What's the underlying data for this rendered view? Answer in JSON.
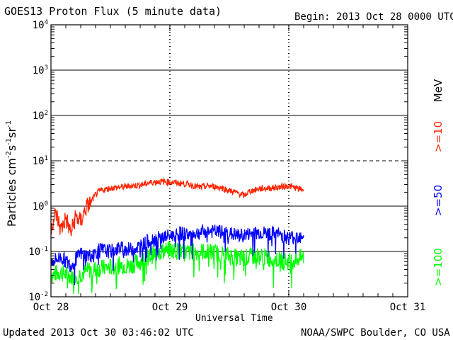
{
  "header": {
    "title": "GOES13 Proton Flux (5 minute data)",
    "begin": "Begin: 2013 Oct 28 0000 UTC"
  },
  "footer": {
    "updated": "Updated 2013 Oct 30 03:46:02 UTC",
    "credit": "NOAA/SWPC Boulder, CO USA"
  },
  "chart_data": {
    "type": "line",
    "title": "GOES13 Proton Flux (5 minute data)",
    "xlabel": "Universal Time",
    "ylabel": "Particles cm-2s-1sr-1",
    "yscale": "log",
    "ylim": [
      0.01,
      10000
    ],
    "xlim_hours": [
      0,
      72
    ],
    "x_ticks": [
      {
        "label": "Oct 28",
        "hour": 0
      },
      {
        "label": "Oct 29",
        "hour": 24
      },
      {
        "label": "Oct 30",
        "hour": 48
      },
      {
        "label": "Oct 31",
        "hour": 72
      }
    ],
    "y_ticks": [
      {
        "mantissa": "10",
        "exp": "-2",
        "value": 0.01
      },
      {
        "mantissa": "10",
        "exp": "-1",
        "value": 0.1
      },
      {
        "mantissa": "10",
        "exp": "0",
        "value": 1
      },
      {
        "mantissa": "10",
        "exp": "1",
        "value": 10
      },
      {
        "mantissa": "10",
        "exp": "2",
        "value": 100
      },
      {
        "mantissa": "10",
        "exp": "3",
        "value": 1000
      },
      {
        "mantissa": "10",
        "exp": "4",
        "value": 10000
      }
    ],
    "thresholds": [
      {
        "value": 0.1,
        "style": "solid"
      },
      {
        "value": 1,
        "style": "solid"
      },
      {
        "value": 10,
        "style": "dashed"
      },
      {
        "value": 100,
        "style": "solid"
      },
      {
        "value": 1000,
        "style": "solid"
      }
    ],
    "energy_unit": "MeV",
    "grid": false,
    "series": [
      {
        "name": ">=10",
        "color": "#ff2400",
        "points": [
          [
            0,
            0.35
          ],
          [
            1,
            0.7
          ],
          [
            2,
            0.3
          ],
          [
            3,
            0.55
          ],
          [
            4,
            0.25
          ],
          [
            5,
            0.6
          ],
          [
            6,
            0.45
          ],
          [
            7,
            0.9
          ],
          [
            8,
            1.2
          ],
          [
            9,
            1.8
          ],
          [
            10,
            2.2
          ],
          [
            12,
            2.5
          ],
          [
            14,
            2.6
          ],
          [
            16,
            2.8
          ],
          [
            18,
            2.9
          ],
          [
            20,
            3.3
          ],
          [
            22,
            3.5
          ],
          [
            24,
            3.4
          ],
          [
            26,
            3.2
          ],
          [
            28,
            3.0
          ],
          [
            30,
            2.6
          ],
          [
            32,
            2.8
          ],
          [
            34,
            2.6
          ],
          [
            36,
            2.2
          ],
          [
            38,
            1.9
          ],
          [
            39,
            1.7
          ],
          [
            40,
            2.1
          ],
          [
            42,
            2.4
          ],
          [
            44,
            2.5
          ],
          [
            46,
            2.6
          ],
          [
            48,
            2.8
          ],
          [
            50,
            2.4
          ],
          [
            51,
            2.3
          ]
        ]
      },
      {
        "name": ">=50",
        "color": "#0000ff",
        "points": [
          [
            0,
            0.06
          ],
          [
            2,
            0.075
          ],
          [
            4,
            0.05
          ],
          [
            6,
            0.09
          ],
          [
            8,
            0.08
          ],
          [
            10,
            0.11
          ],
          [
            12,
            0.1
          ],
          [
            14,
            0.12
          ],
          [
            16,
            0.11
          ],
          [
            18,
            0.13
          ],
          [
            20,
            0.18
          ],
          [
            22,
            0.2
          ],
          [
            24,
            0.22
          ],
          [
            26,
            0.25
          ],
          [
            28,
            0.24
          ],
          [
            30,
            0.26
          ],
          [
            32,
            0.28
          ],
          [
            34,
            0.27
          ],
          [
            36,
            0.25
          ],
          [
            38,
            0.22
          ],
          [
            40,
            0.24
          ],
          [
            42,
            0.26
          ],
          [
            44,
            0.25
          ],
          [
            46,
            0.24
          ],
          [
            48,
            0.2
          ],
          [
            50,
            0.22
          ],
          [
            51,
            0.24
          ]
        ]
      },
      {
        "name": ">=100",
        "color": "#00ff00",
        "points": [
          [
            0,
            0.03
          ],
          [
            2,
            0.035
          ],
          [
            4,
            0.028
          ],
          [
            6,
            0.032
          ],
          [
            8,
            0.04
          ],
          [
            10,
            0.042
          ],
          [
            12,
            0.045
          ],
          [
            14,
            0.05
          ],
          [
            16,
            0.048
          ],
          [
            18,
            0.06
          ],
          [
            20,
            0.08
          ],
          [
            22,
            0.1
          ],
          [
            24,
            0.11
          ],
          [
            26,
            0.1
          ],
          [
            28,
            0.095
          ],
          [
            30,
            0.1
          ],
          [
            32,
            0.098
          ],
          [
            34,
            0.09
          ],
          [
            36,
            0.08
          ],
          [
            38,
            0.07
          ],
          [
            40,
            0.075
          ],
          [
            42,
            0.08
          ],
          [
            44,
            0.07
          ],
          [
            46,
            0.065
          ],
          [
            48,
            0.06
          ],
          [
            50,
            0.07
          ],
          [
            51,
            0.075
          ]
        ]
      }
    ]
  }
}
